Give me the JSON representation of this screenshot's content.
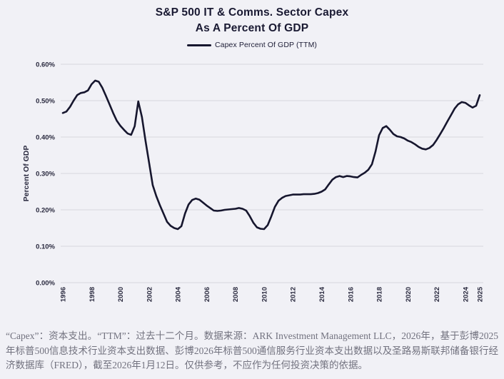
{
  "header": {
    "title_line1": "S&P 500 IT & Comms. Sector Capex",
    "title_line2": "As A Percent Of GDP"
  },
  "legend": {
    "label": "Capex Percent Of GDP (TTM)"
  },
  "colors": {
    "background": "#f1f1f6",
    "line": "#16162e",
    "grid": "#d8d8de",
    "axis_text": "#2a2a3f",
    "title_text": "#191932",
    "footnote_text": "#72727f"
  },
  "chart_data": {
    "type": "line",
    "title": "S&P 500 IT & Comms. Sector Capex As A Percent Of GDP",
    "xlabel": "",
    "ylabel": "Percent Of GDP",
    "xlim": [
      1996,
      2025
    ],
    "ylim": [
      0,
      0.006
    ],
    "grid": true,
    "legend_position": "top-center",
    "yticks": [
      0.0,
      0.001,
      0.002,
      0.003,
      0.004,
      0.005,
      0.006
    ],
    "ytick_labels": [
      "0.00%",
      "0.10%",
      "0.20%",
      "0.30%",
      "0.40%",
      "0.50%",
      "0.60%"
    ],
    "xticks": [
      1996,
      1998,
      2000,
      2002,
      2004,
      2006,
      2008,
      2010,
      2012,
      2014,
      2016,
      2018,
      2020,
      2022,
      2024,
      2025
    ],
    "series": [
      {
        "name": "Capex Percent Of GDP (TTM)",
        "unit": "percent of GDP",
        "points": [
          [
            1996.0,
            0.466
          ],
          [
            1996.25,
            0.47
          ],
          [
            1996.5,
            0.483
          ],
          [
            1996.75,
            0.5
          ],
          [
            1997.0,
            0.515
          ],
          [
            1997.25,
            0.521
          ],
          [
            1997.5,
            0.523
          ],
          [
            1997.75,
            0.528
          ],
          [
            1998.0,
            0.545
          ],
          [
            1998.25,
            0.555
          ],
          [
            1998.5,
            0.552
          ],
          [
            1998.75,
            0.535
          ],
          [
            1999.0,
            0.513
          ],
          [
            1999.25,
            0.49
          ],
          [
            1999.5,
            0.466
          ],
          [
            1999.75,
            0.445
          ],
          [
            2000.0,
            0.431
          ],
          [
            2000.25,
            0.42
          ],
          [
            2000.5,
            0.41
          ],
          [
            2000.75,
            0.406
          ],
          [
            2001.0,
            0.43
          ],
          [
            2001.25,
            0.498
          ],
          [
            2001.5,
            0.455
          ],
          [
            2001.75,
            0.39
          ],
          [
            2002.0,
            0.33
          ],
          [
            2002.25,
            0.268
          ],
          [
            2002.5,
            0.238
          ],
          [
            2002.75,
            0.213
          ],
          [
            2003.0,
            0.19
          ],
          [
            2003.25,
            0.167
          ],
          [
            2003.5,
            0.156
          ],
          [
            2003.75,
            0.15
          ],
          [
            2004.0,
            0.147
          ],
          [
            2004.25,
            0.155
          ],
          [
            2004.5,
            0.19
          ],
          [
            2004.75,
            0.215
          ],
          [
            2005.0,
            0.227
          ],
          [
            2005.25,
            0.231
          ],
          [
            2005.5,
            0.228
          ],
          [
            2005.75,
            0.22
          ],
          [
            2006.0,
            0.212
          ],
          [
            2006.25,
            0.205
          ],
          [
            2006.5,
            0.198
          ],
          [
            2006.75,
            0.197
          ],
          [
            2007.0,
            0.198
          ],
          [
            2007.25,
            0.2
          ],
          [
            2007.5,
            0.201
          ],
          [
            2007.75,
            0.202
          ],
          [
            2008.0,
            0.203
          ],
          [
            2008.25,
            0.205
          ],
          [
            2008.5,
            0.203
          ],
          [
            2008.75,
            0.198
          ],
          [
            2009.0,
            0.183
          ],
          [
            2009.25,
            0.165
          ],
          [
            2009.5,
            0.152
          ],
          [
            2009.75,
            0.148
          ],
          [
            2010.0,
            0.147
          ],
          [
            2010.25,
            0.158
          ],
          [
            2010.5,
            0.182
          ],
          [
            2010.75,
            0.208
          ],
          [
            2011.0,
            0.225
          ],
          [
            2011.25,
            0.233
          ],
          [
            2011.5,
            0.238
          ],
          [
            2011.75,
            0.24
          ],
          [
            2012.0,
            0.242
          ],
          [
            2012.25,
            0.242
          ],
          [
            2012.5,
            0.242
          ],
          [
            2012.75,
            0.243
          ],
          [
            2013.0,
            0.243
          ],
          [
            2013.25,
            0.243
          ],
          [
            2013.5,
            0.244
          ],
          [
            2013.75,
            0.246
          ],
          [
            2014.0,
            0.25
          ],
          [
            2014.25,
            0.256
          ],
          [
            2014.5,
            0.27
          ],
          [
            2014.75,
            0.283
          ],
          [
            2015.0,
            0.29
          ],
          [
            2015.25,
            0.293
          ],
          [
            2015.5,
            0.29
          ],
          [
            2015.75,
            0.293
          ],
          [
            2016.0,
            0.292
          ],
          [
            2016.25,
            0.29
          ],
          [
            2016.5,
            0.289
          ],
          [
            2016.75,
            0.296
          ],
          [
            2017.0,
            0.302
          ],
          [
            2017.25,
            0.31
          ],
          [
            2017.5,
            0.325
          ],
          [
            2017.75,
            0.36
          ],
          [
            2018.0,
            0.405
          ],
          [
            2018.25,
            0.425
          ],
          [
            2018.5,
            0.43
          ],
          [
            2018.75,
            0.42
          ],
          [
            2019.0,
            0.408
          ],
          [
            2019.25,
            0.402
          ],
          [
            2019.5,
            0.4
          ],
          [
            2019.75,
            0.396
          ],
          [
            2020.0,
            0.39
          ],
          [
            2020.25,
            0.386
          ],
          [
            2020.5,
            0.38
          ],
          [
            2020.75,
            0.373
          ],
          [
            2021.0,
            0.368
          ],
          [
            2021.25,
            0.366
          ],
          [
            2021.5,
            0.37
          ],
          [
            2021.75,
            0.378
          ],
          [
            2022.0,
            0.392
          ],
          [
            2022.25,
            0.408
          ],
          [
            2022.5,
            0.425
          ],
          [
            2022.75,
            0.443
          ],
          [
            2023.0,
            0.46
          ],
          [
            2023.25,
            0.478
          ],
          [
            2023.5,
            0.49
          ],
          [
            2023.75,
            0.496
          ],
          [
            2024.0,
            0.494
          ],
          [
            2024.25,
            0.487
          ],
          [
            2024.5,
            0.481
          ],
          [
            2024.75,
            0.486
          ],
          [
            2025.0,
            0.515
          ]
        ],
        "value_scale_note": "point values are in percent (e.g. 0.466 = 0.466% of GDP)"
      }
    ]
  },
  "footnote": {
    "text": "“Capex”：资本支出。“TTM”：过去十二个月。数据来源：ARK Investment Management LLC，2026年，基于彭博2025年标普500信息技术行业资本支出数据、彭博2026年标普500通信服务行业资本支出数据以及圣路易斯联邦储备银行经济数据库（FRED），截至2026年1月12日。仅供参考，不应作为任何投资决策的依据。"
  }
}
